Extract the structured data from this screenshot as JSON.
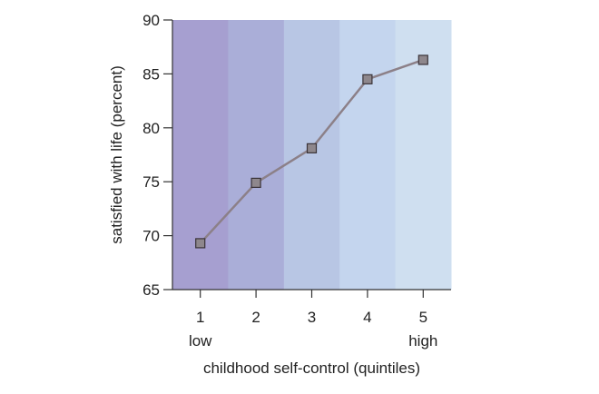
{
  "chart_data": {
    "type": "line",
    "title": "",
    "xlabel": "childhood self-control (quintiles)",
    "ylabel": "satisfied with life (percent)",
    "categories": [
      "1",
      "2",
      "3",
      "4",
      "5"
    ],
    "category_sublabels": [
      "low",
      "",
      "",
      "",
      "high"
    ],
    "series": [
      {
        "values": [
          69.3,
          74.9,
          78.1,
          84.5,
          86.3
        ]
      }
    ],
    "ylim": [
      65,
      90
    ],
    "yticks": [
      65,
      70,
      75,
      80,
      85,
      90
    ],
    "grid": false,
    "legend": "none",
    "colors": {
      "line": "#8c8088",
      "marker_fill": "#8e878c",
      "marker_stroke": "#3a3338",
      "axis": "#333333",
      "bands": [
        "#a69fd0",
        "#aaaed8",
        "#b8c6e4",
        "#c4d5ee",
        "#cfdff0"
      ]
    }
  }
}
